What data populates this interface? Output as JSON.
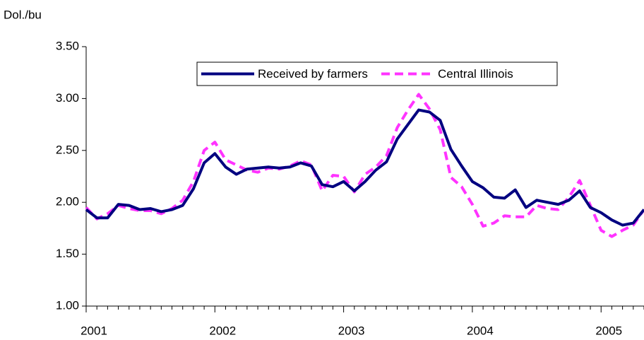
{
  "chart_data": {
    "type": "line",
    "y_label": "Dol./bu",
    "categories": [
      "2001",
      null,
      null,
      null,
      null,
      null,
      null,
      null,
      null,
      null,
      null,
      null,
      "2002",
      null,
      null,
      null,
      null,
      null,
      null,
      null,
      null,
      null,
      null,
      null,
      "2003",
      null,
      null,
      null,
      null,
      null,
      null,
      null,
      null,
      null,
      null,
      null,
      "2004",
      null,
      null,
      null,
      null,
      null,
      null,
      null,
      null,
      null,
      null,
      null,
      "2005",
      null,
      null,
      null,
      null
    ],
    "series": [
      {
        "name": "Received by farmers",
        "color": "#000080",
        "dash": false,
        "values": [
          1.93,
          1.85,
          1.85,
          1.98,
          1.97,
          1.93,
          1.94,
          1.91,
          1.93,
          1.97,
          2.13,
          2.38,
          2.47,
          2.34,
          2.27,
          2.32,
          2.33,
          2.34,
          2.33,
          2.34,
          2.38,
          2.35,
          2.17,
          2.15,
          2.2,
          2.11,
          2.2,
          2.31,
          2.39,
          2.61,
          2.75,
          2.89,
          2.87,
          2.79,
          2.51,
          2.35,
          2.2,
          2.14,
          2.05,
          2.04,
          2.12,
          1.95,
          2.02,
          2.0,
          1.98,
          2.02,
          2.11,
          1.95,
          1.9,
          1.83,
          1.78,
          1.8,
          1.93
        ]
      },
      {
        "name": "Central Illinois",
        "color": "#ff33ff",
        "dash": true,
        "values": [
          1.95,
          1.84,
          1.89,
          1.97,
          1.94,
          1.92,
          1.92,
          1.89,
          1.94,
          2.02,
          2.2,
          2.5,
          2.58,
          2.41,
          2.36,
          2.31,
          2.29,
          2.33,
          2.32,
          2.35,
          2.4,
          2.36,
          2.11,
          2.26,
          2.25,
          2.1,
          2.27,
          2.34,
          2.45,
          2.72,
          2.89,
          3.04,
          2.9,
          2.7,
          2.24,
          2.15,
          1.98,
          1.77,
          1.8,
          1.87,
          1.86,
          1.86,
          1.97,
          1.94,
          1.93,
          2.05,
          2.21,
          1.97,
          1.73,
          1.67,
          1.73,
          1.78,
          1.93
        ]
      }
    ],
    "ylim": [
      1,
      3.5
    ],
    "yticks": [
      {
        "value": 1,
        "label": "1.00"
      },
      {
        "value": 1.5,
        "label": "1.50"
      },
      {
        "value": 2,
        "label": "2.00"
      },
      {
        "value": 2.5,
        "label": "2.50"
      },
      {
        "value": 3,
        "label": "3.00"
      },
      {
        "value": 3.5,
        "label": "3.50"
      }
    ],
    "grid": false,
    "legend": "top"
  }
}
